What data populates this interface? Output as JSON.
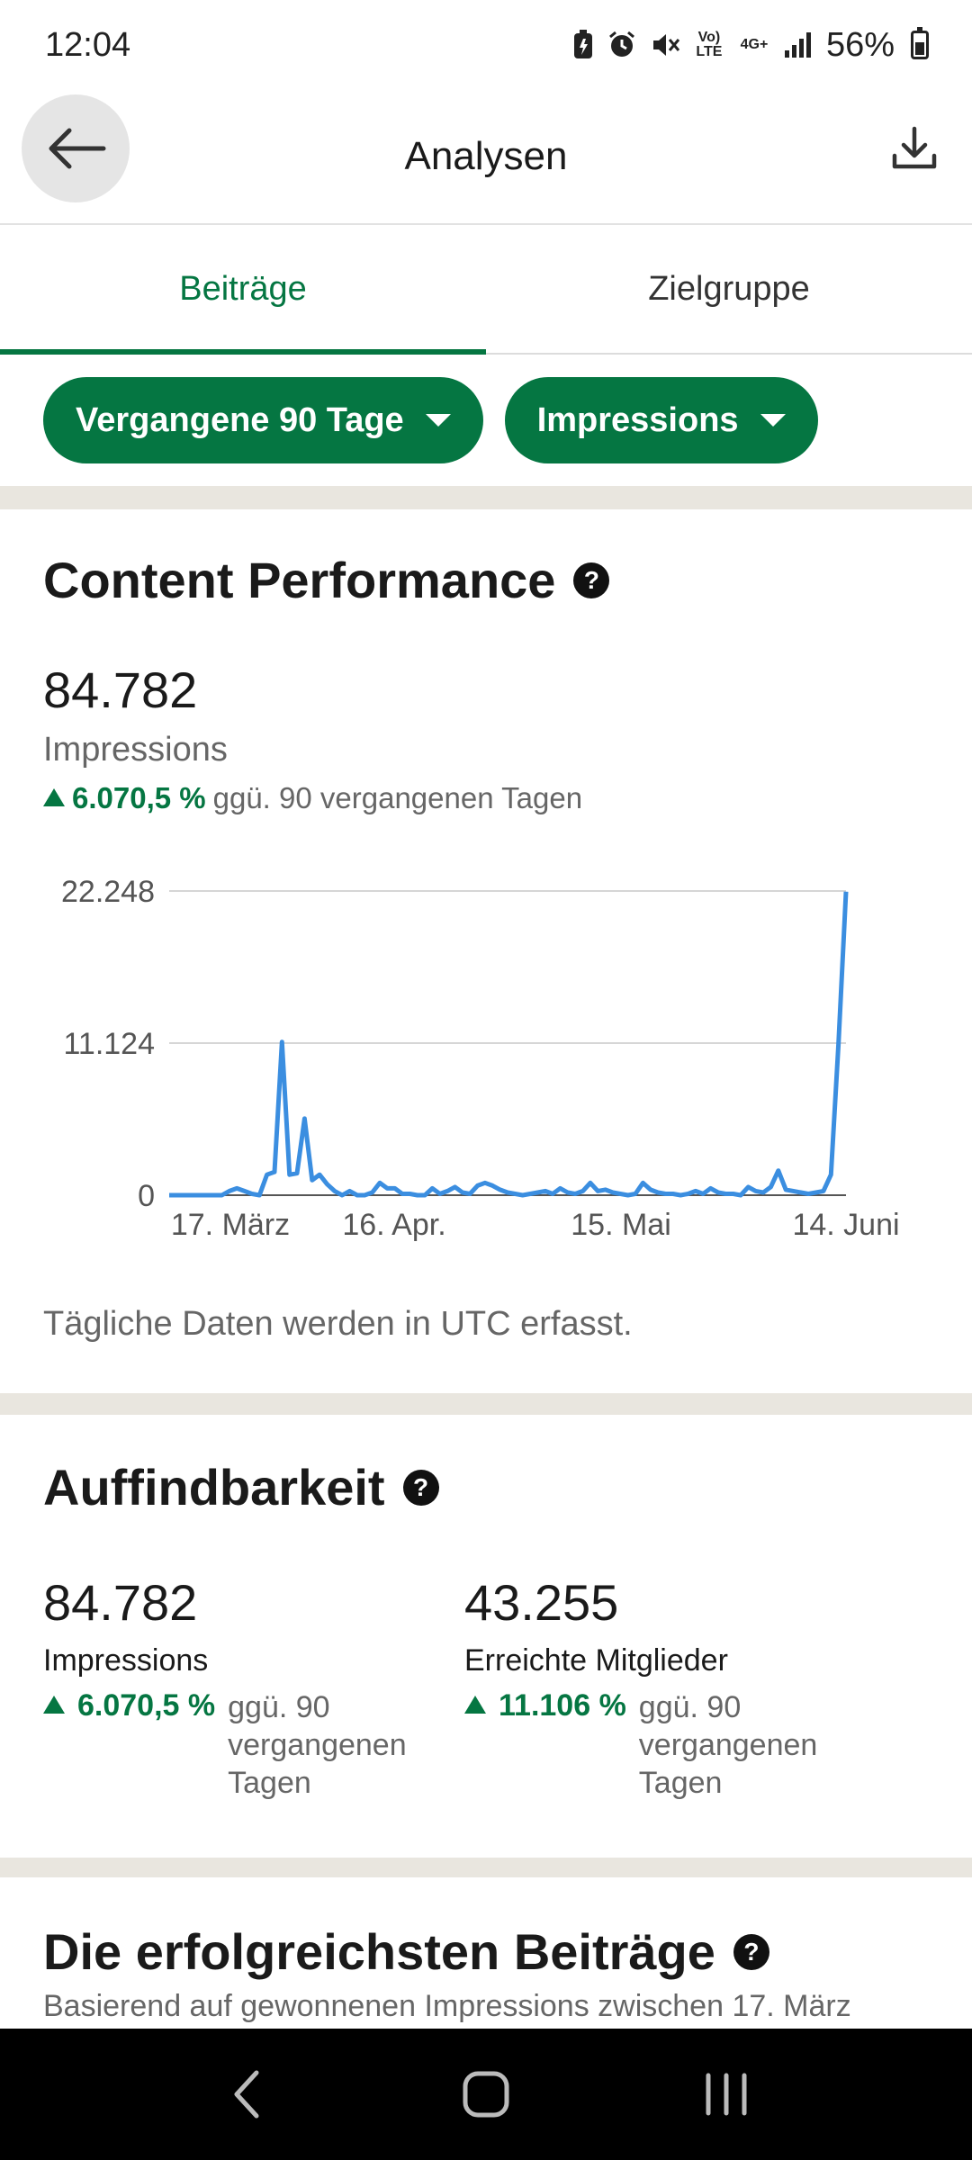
{
  "status": {
    "time": "12:04",
    "battery": "56%",
    "icons": [
      "battery-saver-icon",
      "alarm-icon",
      "mute-icon",
      "volte-icon",
      "4g-icon",
      "signal-icon",
      "battery-icon"
    ],
    "volte": "Vo) LTE",
    "network": "4G+"
  },
  "header": {
    "title": "Analysen",
    "back_icon": "arrow-left-icon",
    "download_icon": "download-icon"
  },
  "tabs": [
    {
      "label": "Beiträge",
      "active": true
    },
    {
      "label": "Zielgruppe",
      "active": false
    }
  ],
  "filters": {
    "period": "Vergangene 90 Tage",
    "metric": "Impressions"
  },
  "content_performance": {
    "title": "Content Performance",
    "value": "84.782",
    "label": "Impressions",
    "change_pct": "6.070,5 %",
    "change_text": "ggü. 90 vergangenen Tagen",
    "note": "Tägliche Daten werden in UTC erfasst."
  },
  "chart_data": {
    "type": "line",
    "x_tick_labels": [
      "17. März",
      "16. Apr.",
      "15. Mai",
      "14. Juni"
    ],
    "y_tick_labels": [
      "0",
      "11.124",
      "22.248"
    ],
    "ylim": [
      0,
      22248
    ],
    "grid": true,
    "color": "#3b8ee0",
    "series": [
      {
        "values": [
          0,
          0,
          0,
          0,
          0,
          0,
          0,
          0,
          300,
          500,
          300,
          100,
          0,
          1500,
          1700,
          11200,
          1500,
          1600,
          5600,
          1100,
          1500,
          800,
          300,
          0,
          300,
          0,
          0,
          200,
          900,
          500,
          500,
          100,
          100,
          0,
          0,
          500,
          100,
          300,
          600,
          200,
          100,
          700,
          900,
          700,
          400,
          200,
          100,
          0,
          100,
          200,
          300,
          100,
          500,
          200,
          100,
          300,
          900,
          300,
          400,
          200,
          100,
          0,
          100,
          900,
          400,
          200,
          100,
          100,
          0,
          100,
          300,
          100,
          500,
          200,
          100,
          100,
          0,
          600,
          300,
          200,
          600,
          1800,
          400,
          300,
          200,
          100,
          200,
          300,
          1500,
          11000,
          22200
        ]
      }
    ]
  },
  "auffindbarkeit": {
    "title": "Auffindbarkeit",
    "items": [
      {
        "value": "84.782",
        "label": "Impressions",
        "change_pct": "6.070,5 %",
        "change_text": "ggü. 90 vergangenen Tagen"
      },
      {
        "value": "43.255",
        "label": "Erreichte Mitglieder",
        "change_pct": "11.106 %",
        "change_text": "ggü. 90 vergangenen Tagen"
      }
    ]
  },
  "top_posts": {
    "title": "Die erfolgreichsten Beiträge",
    "subtitle": "Basierend auf gewonnenen Impressions zwischen 17. März"
  },
  "navbar": {
    "icons": [
      "back-nav-icon",
      "home-nav-icon",
      "recents-nav-icon"
    ]
  }
}
